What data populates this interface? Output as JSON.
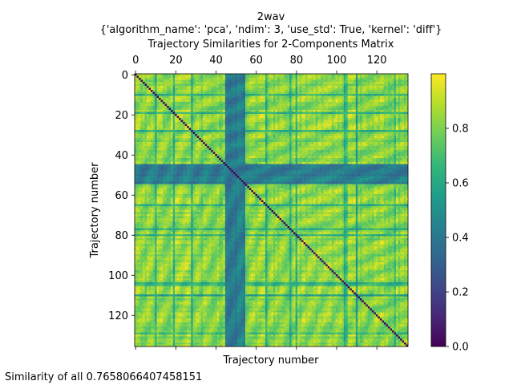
{
  "chart_data": {
    "type": "heatmap",
    "title_lines": [
      "2wav",
      "{'algorithm_name': 'pca', 'ndim': 3, 'use_std': True, 'kernel': 'diff'}",
      "Trajectory Similarities for 2-Components Matrix"
    ],
    "xlabel": "Trajectory number",
    "ylabel": "Trajectory number",
    "n": 136,
    "x_ticks": [
      0,
      20,
      40,
      60,
      80,
      100,
      120
    ],
    "y_ticks": [
      0,
      20,
      40,
      60,
      80,
      100,
      120
    ],
    "x_tick_labels": [
      "0",
      "20",
      "40",
      "60",
      "80",
      "100",
      "120"
    ],
    "y_tick_labels": [
      "0",
      "20",
      "40",
      "60",
      "80",
      "100",
      "120"
    ],
    "colorbar": {
      "colormap": "viridis",
      "vmin": 0.0,
      "vmax": 1.0,
      "ticks": [
        0.0,
        0.2,
        0.4,
        0.6,
        0.8
      ],
      "tick_labels": [
        "0.0",
        "0.2",
        "0.4",
        "0.6",
        "0.8"
      ]
    },
    "low_similarity_bands": [
      [
        45,
        54
      ]
    ],
    "diagonal_value": 0.0
  },
  "footer": {
    "text": "Similarity of all 0.7658066407458151"
  },
  "colors": {
    "viridis": [
      "#440154",
      "#482878",
      "#3e4989",
      "#31688e",
      "#26828e",
      "#1f9e89",
      "#35b779",
      "#6ece58",
      "#b5de2b",
      "#fde725"
    ]
  }
}
